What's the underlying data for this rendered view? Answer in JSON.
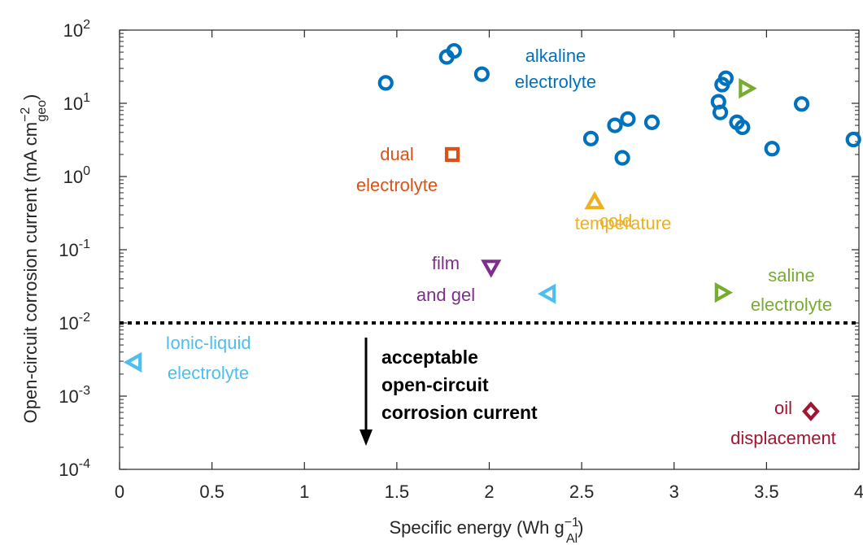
{
  "chart_data": {
    "type": "scatter",
    "xlabel": "Specific energy (Wh g",
    "xlabel_sup": "−1",
    "xlabel_sub": "Al",
    "xlabel_end": ")",
    "ylabel": "Open-circuit corrosion current (mA cm",
    "ylabel_sup": "−2",
    "ylabel_sub": "geo",
    "ylabel_end": ")",
    "xlim": [
      0,
      4
    ],
    "ylim_log10": [
      -4,
      2
    ],
    "yscale": "log",
    "grid": false,
    "x_ticks": [
      "0",
      "0.5",
      "1",
      "1.5",
      "2",
      "2.5",
      "3",
      "3.5",
      "4"
    ],
    "y_ticks": [
      {
        "base": "10",
        "exp": "-4"
      },
      {
        "base": "10",
        "exp": "-3"
      },
      {
        "base": "10",
        "exp": "-2"
      },
      {
        "base": "10",
        "exp": "-1"
      },
      {
        "base": "10",
        "exp": "0"
      },
      {
        "base": "10",
        "exp": "1"
      },
      {
        "base": "10",
        "exp": "2"
      }
    ],
    "threshold_y": 0.01,
    "series": [
      {
        "marker": "circle",
        "color": "#0072bd",
        "label_lines": [
          "alkaline",
          "electrolyte"
        ],
        "points": [
          [
            1.44,
            19
          ],
          [
            1.77,
            43
          ],
          [
            1.81,
            52
          ],
          [
            1.96,
            25
          ],
          [
            2.55,
            3.3
          ],
          [
            2.68,
            5.0
          ],
          [
            2.72,
            1.8
          ],
          [
            2.75,
            6.1
          ],
          [
            2.88,
            5.5
          ],
          [
            3.24,
            10.5
          ],
          [
            3.25,
            7.5
          ],
          [
            3.26,
            18
          ],
          [
            3.28,
            22
          ],
          [
            3.34,
            5.5
          ],
          [
            3.37,
            4.7
          ],
          [
            3.53,
            2.4
          ],
          [
            3.69,
            9.8
          ],
          [
            3.97,
            3.2
          ]
        ]
      },
      {
        "marker": "square",
        "color": "#d95319",
        "label_lines": [
          "dual",
          "electrolyte"
        ],
        "points": [
          [
            1.8,
            2.0
          ]
        ]
      },
      {
        "marker": "triangle-up",
        "color": "#edb120",
        "label_lines": [
          "cold",
          "temperature"
        ],
        "points": [
          [
            2.57,
            0.45
          ]
        ]
      },
      {
        "marker": "triangle-down",
        "color": "#7e2f8e",
        "label_lines": [
          "film",
          "and gel"
        ],
        "points": [
          [
            2.01,
            0.058
          ]
        ]
      },
      {
        "marker": "triangle-left",
        "color": "#4dbeee",
        "label_lines": [
          "Ionic-liquid",
          "electrolyte"
        ],
        "points": [
          [
            2.32,
            0.025
          ],
          [
            0.08,
            0.0029
          ]
        ]
      },
      {
        "marker": "triangle-right",
        "color": "#77ac30",
        "label_lines": [
          "saline",
          "electrolyte"
        ],
        "points": [
          [
            3.39,
            16
          ],
          [
            3.26,
            0.026
          ]
        ]
      },
      {
        "marker": "diamond",
        "color": "#a2142f",
        "label_lines": [
          "oil",
          "displacement"
        ],
        "points": [
          [
            3.74,
            0.00062
          ]
        ]
      }
    ],
    "annotation_lines": [
      "acceptable",
      "open-circuit",
      "corrosion current"
    ]
  }
}
